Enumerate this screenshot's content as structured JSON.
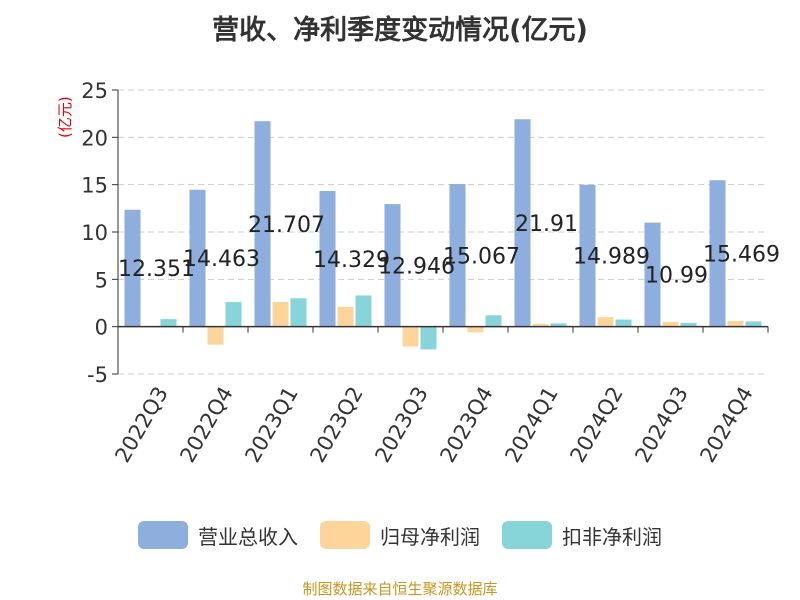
{
  "chart_data": {
    "type": "bar",
    "title": "营收、净利季度变动情况(亿元)",
    "ylabel": "(亿元)",
    "xlabel": "",
    "ylim": [
      -5,
      25
    ],
    "yticks": [
      25,
      20,
      15,
      10,
      5,
      0,
      -5
    ],
    "grid": true,
    "legend_position": "bottom",
    "categories": [
      "2022Q3",
      "2022Q4",
      "2023Q1",
      "2023Q2",
      "2023Q3",
      "2023Q4",
      "2024Q1",
      "2024Q2",
      "2024Q3",
      "2024Q4"
    ],
    "series": [
      {
        "name": "营业总收入",
        "color": "#8eaedd",
        "values": [
          12.351,
          14.463,
          21.707,
          14.329,
          12.946,
          15.067,
          21.91,
          14.989,
          10.99,
          15.469
        ],
        "labels": [
          "12.351",
          "14.463",
          "21.707",
          "14.329",
          "12.946",
          "15.067",
          "21.91",
          "14.989",
          "10.99",
          "15.469"
        ]
      },
      {
        "name": "归母净利润",
        "color": "#fdd49a",
        "values": [
          0.0,
          -1.9,
          2.6,
          2.1,
          -2.1,
          -0.6,
          0.3,
          1.0,
          0.5,
          0.6
        ]
      },
      {
        "name": "扣非净利润",
        "color": "#87d5d8",
        "values": [
          0.8,
          2.6,
          3.0,
          3.3,
          -2.4,
          1.2,
          0.35,
          0.75,
          0.4,
          0.55
        ]
      }
    ]
  },
  "source": "制图数据来自恒生聚源数据库"
}
